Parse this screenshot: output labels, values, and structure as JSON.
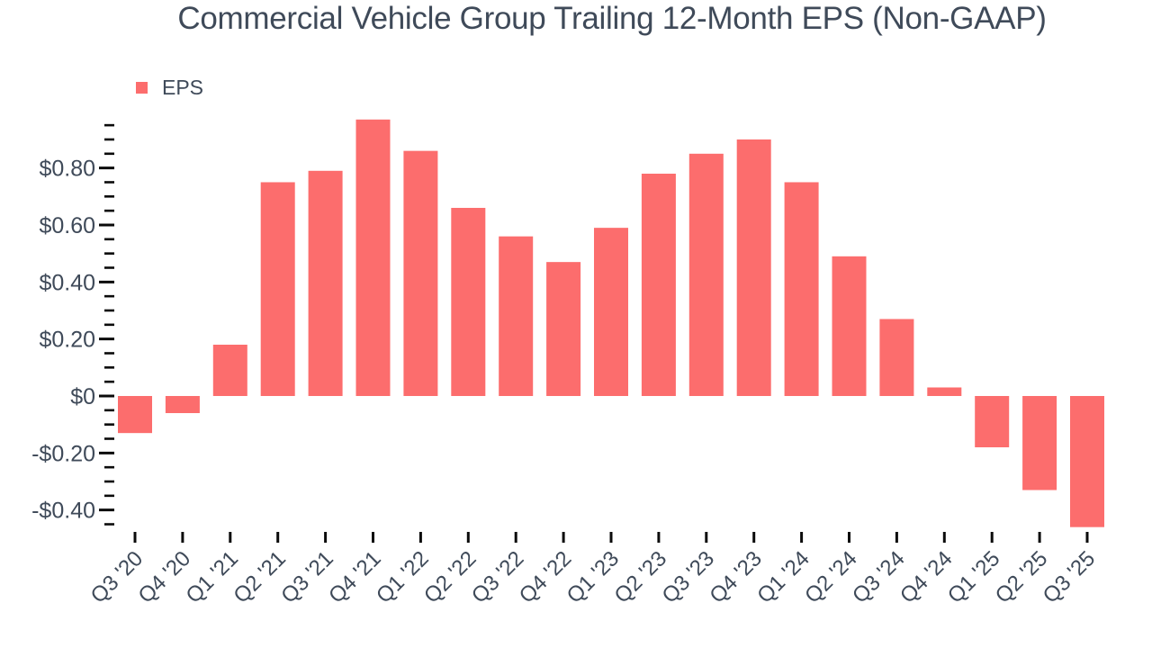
{
  "title": {
    "text": "Commercial Vehicle Group Trailing 12-Month EPS (Non-GAAP)",
    "color": "#3f4a59"
  },
  "legend": {
    "label": "EPS",
    "swatch_color": "#fc6d6d"
  },
  "chart_data": {
    "type": "bar",
    "title": "Commercial Vehicle Group Trailing 12-Month EPS (Non-GAAP)",
    "series_name": "EPS",
    "categories": [
      "Q3 '20",
      "Q4 '20",
      "Q1 '21",
      "Q2 '21",
      "Q3 '21",
      "Q4 '21",
      "Q1 '22",
      "Q2 '22",
      "Q3 '22",
      "Q4 '22",
      "Q1 '23",
      "Q2 '23",
      "Q3 '23",
      "Q4 '23",
      "Q1 '24",
      "Q2 '24",
      "Q3 '24",
      "Q4 '24",
      "Q1 '25",
      "Q2 '25",
      "Q3 '25"
    ],
    "values": [
      -0.13,
      -0.06,
      0.18,
      0.75,
      0.79,
      0.97,
      0.86,
      0.66,
      0.56,
      0.47,
      0.59,
      0.78,
      0.85,
      0.9,
      0.75,
      0.49,
      0.27,
      0.03,
      -0.18,
      -0.33,
      -0.46
    ],
    "bar_color": "#fc6d6d",
    "xlabel": "",
    "ylabel": "",
    "ylim": [
      -0.45,
      0.95
    ],
    "y_minor_step": 0.05,
    "y_major_ticks": [
      {
        "value": 0.8,
        "label": "$0.80"
      },
      {
        "value": 0.6,
        "label": "$0.60"
      },
      {
        "value": 0.4,
        "label": "$0.40"
      },
      {
        "value": 0.2,
        "label": "$0.20"
      },
      {
        "value": 0.0,
        "label": "$0"
      },
      {
        "value": -0.2,
        "label": "-$0.20"
      },
      {
        "value": -0.4,
        "label": "-$0.40"
      }
    ],
    "grid": false,
    "legend_position": "top-left",
    "axis_text_color": "#3f4a59",
    "tick_color": "#0b0b0b"
  }
}
